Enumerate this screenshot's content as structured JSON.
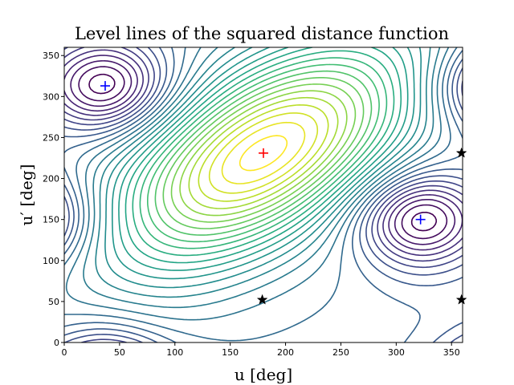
{
  "chart_data": {
    "type": "contour",
    "title": "Level lines of the squared distance function",
    "xlabel": "u [deg]",
    "ylabel": "u′ [deg]",
    "xlim": [
      0,
      360
    ],
    "ylim": [
      0,
      360
    ],
    "xticks": [
      0,
      50,
      100,
      150,
      200,
      250,
      300,
      350
    ],
    "yticks": [
      0,
      50,
      100,
      150,
      200,
      250,
      300,
      350
    ],
    "grid": false,
    "legend": "none",
    "colormap": "viridis",
    "num_levels": 30,
    "level_values": [],
    "markers": [
      {
        "kind": "max",
        "symbol": "+",
        "color": "#ff0000",
        "x": 180,
        "y": 231
      },
      {
        "kind": "min",
        "symbol": "+",
        "color": "#0000ff",
        "x": 37,
        "y": 313
      },
      {
        "kind": "min",
        "symbol": "+",
        "color": "#0000ff",
        "x": 322,
        "y": 150
      },
      {
        "kind": "saddle",
        "symbol": "*",
        "color": "#000000",
        "x": 179,
        "y": 52
      },
      {
        "kind": "saddle",
        "symbol": "*",
        "color": "#000000",
        "x": 359,
        "y": 52
      },
      {
        "kind": "saddle",
        "symbol": "*",
        "color": "#000000",
        "x": 359,
        "y": 231
      }
    ]
  }
}
